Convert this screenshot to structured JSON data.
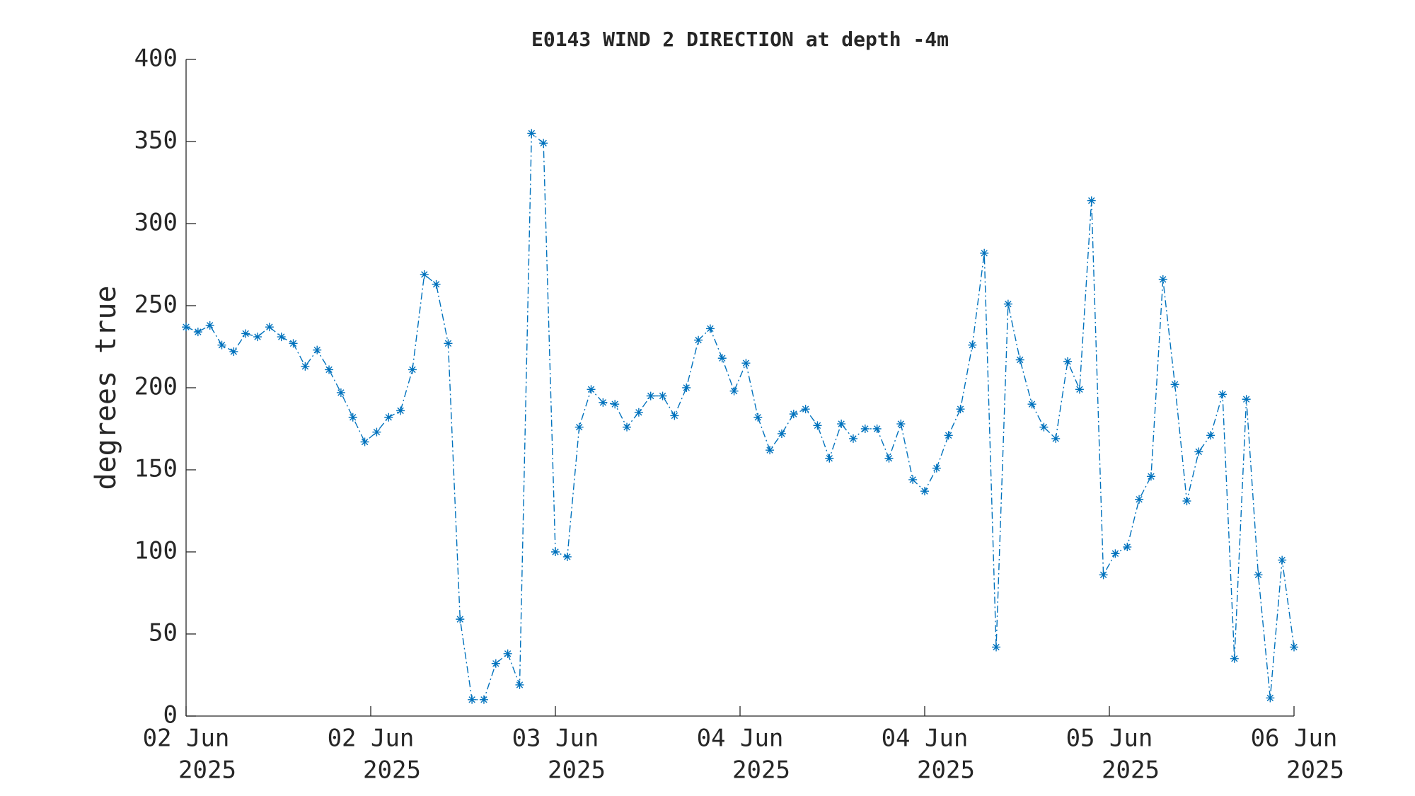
{
  "chart_data": {
    "type": "line",
    "title": "E0143 WIND 2 DIRECTION at depth -4m",
    "y_label": "degrees true",
    "x": [
      0,
      1,
      2,
      3,
      4,
      5,
      6,
      7,
      8,
      9,
      10,
      11,
      12,
      13,
      14,
      15,
      16,
      17,
      18,
      19,
      20,
      21,
      22,
      23,
      24,
      25,
      26,
      27,
      28,
      29,
      30,
      31,
      32,
      33,
      34,
      35,
      36,
      37,
      38,
      39,
      40,
      41,
      42,
      43,
      44,
      45,
      46,
      47,
      48,
      49,
      50,
      51,
      52,
      53,
      54,
      55,
      56,
      57,
      58,
      59,
      60,
      61,
      62,
      63,
      64,
      65,
      66,
      67,
      68,
      69,
      70,
      71,
      72,
      73,
      74,
      75,
      76,
      77,
      78,
      79,
      80,
      81,
      82,
      83,
      84,
      85,
      86,
      87,
      88,
      89,
      90,
      91,
      92,
      93
    ],
    "series": [
      {
        "name": "wind direction",
        "color": "#0072bd",
        "values": [
          237,
          234,
          238,
          226,
          222,
          233,
          231,
          237,
          231,
          227,
          213,
          223,
          211,
          197,
          182,
          167,
          173,
          182,
          186,
          211,
          269,
          263,
          227,
          59,
          10,
          10,
          32,
          38,
          19,
          355,
          349,
          100,
          97,
          176,
          199,
          191,
          190,
          176,
          185,
          195,
          195,
          183,
          200,
          229,
          236,
          218,
          198,
          215,
          182,
          162,
          172,
          184,
          187,
          177,
          157,
          178,
          169,
          175,
          175,
          157,
          178,
          144,
          137,
          151,
          171,
          187,
          226,
          282,
          42,
          251,
          217,
          190,
          176,
          169,
          216,
          199,
          314,
          86,
          99,
          103,
          132,
          146,
          266,
          202,
          131,
          161,
          171,
          196,
          35,
          193,
          86,
          11,
          95,
          42
        ]
      }
    ],
    "xlim": [
      0,
      93
    ],
    "xticks": [
      {
        "value": 0,
        "label": [
          "02 Jun",
          "2025"
        ]
      },
      {
        "value": 15.5,
        "label": [
          "02 Jun",
          "2025"
        ]
      },
      {
        "value": 31,
        "label": [
          "03 Jun",
          "2025"
        ]
      },
      {
        "value": 46.5,
        "label": [
          "04 Jun",
          "2025"
        ]
      },
      {
        "value": 62,
        "label": [
          "04 Jun",
          "2025"
        ]
      },
      {
        "value": 77.5,
        "label": [
          "05 Jun",
          "2025"
        ]
      },
      {
        "value": 93,
        "label": [
          "06 Jun",
          "2025"
        ]
      }
    ],
    "ylim": [
      0,
      400
    ],
    "yticks": [
      0,
      50,
      100,
      150,
      200,
      250,
      300,
      350,
      400
    ],
    "grid": false
  }
}
